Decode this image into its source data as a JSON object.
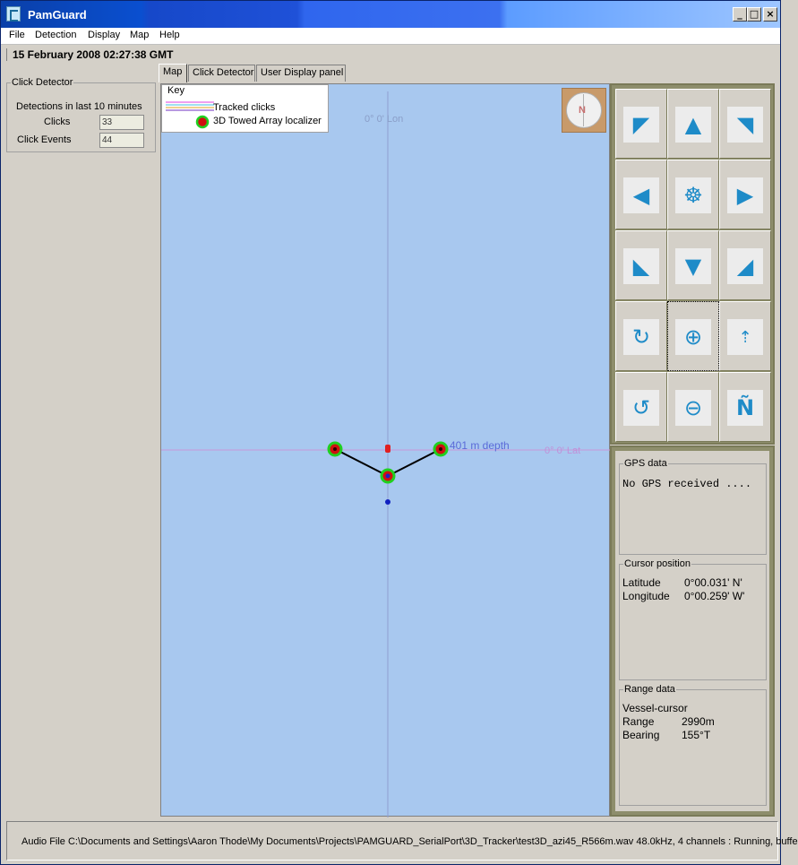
{
  "window": {
    "title": "PamGuard",
    "min_label": "_",
    "max_label": "□",
    "close_label": "×"
  },
  "menu": {
    "items": [
      "File",
      "Detection",
      "Display",
      "Map",
      "Help"
    ]
  },
  "datetime": "15 February 2008 02:27:38 GMT",
  "click_detector": {
    "title": "Click Detector",
    "subtitle": "Detections in last 10 minutes",
    "clicks_label": "Clicks",
    "clicks_value": "33",
    "events_label": "Click Events",
    "events_value": "44"
  },
  "tabs": [
    "Map",
    "Click Detector",
    "User Display panel"
  ],
  "map": {
    "key_title": "Key",
    "key_items": [
      "Tracked clicks",
      "3D Towed Array localizer"
    ],
    "lon_label": "0° 0' Lon",
    "lat_label": "0° 0' Lat",
    "depth_label": "401 m depth",
    "compass_letter": "N"
  },
  "controls": {
    "icons": [
      "pan-up-left-icon",
      "pan-up-icon",
      "pan-up-right-icon",
      "pan-left-icon",
      "center-ship-icon",
      "pan-right-icon",
      "pan-down-left-icon",
      "pan-down-icon",
      "pan-down-right-icon",
      "rotate-clockwise-icon",
      "zoom-in-icon",
      "center-ship-up-icon",
      "rotate-anticlockwise-icon",
      "zoom-out-icon",
      "north-up-icon"
    ]
  },
  "gps": {
    "title": "GPS data",
    "message": "No GPS received ...."
  },
  "cursor": {
    "title": "Cursor position",
    "lat_label": "Latitude",
    "lat_value": "0°00.031' N'",
    "lon_label": "Longitude",
    "lon_value": "0°00.259' W'"
  },
  "range": {
    "title": "Range data",
    "heading": "Vessel-cursor",
    "range_label": "Range",
    "range_value": "2990m",
    "bearing_label": "Bearing",
    "bearing_value": "155°T"
  },
  "status": {
    "text": "Audio File C:\\Documents and Settings\\Aaron Thode\\My Documents\\Projects\\PAMGUARD_SerialPort\\3D_Tracker\\test3D_azi45_R566m.wav 48.0kHz, 4 channels : Running, buffe"
  },
  "colors": {
    "map_bg": "#a8c8ef",
    "accent": "#1e8bc8",
    "frame": "#8e8e6c"
  }
}
